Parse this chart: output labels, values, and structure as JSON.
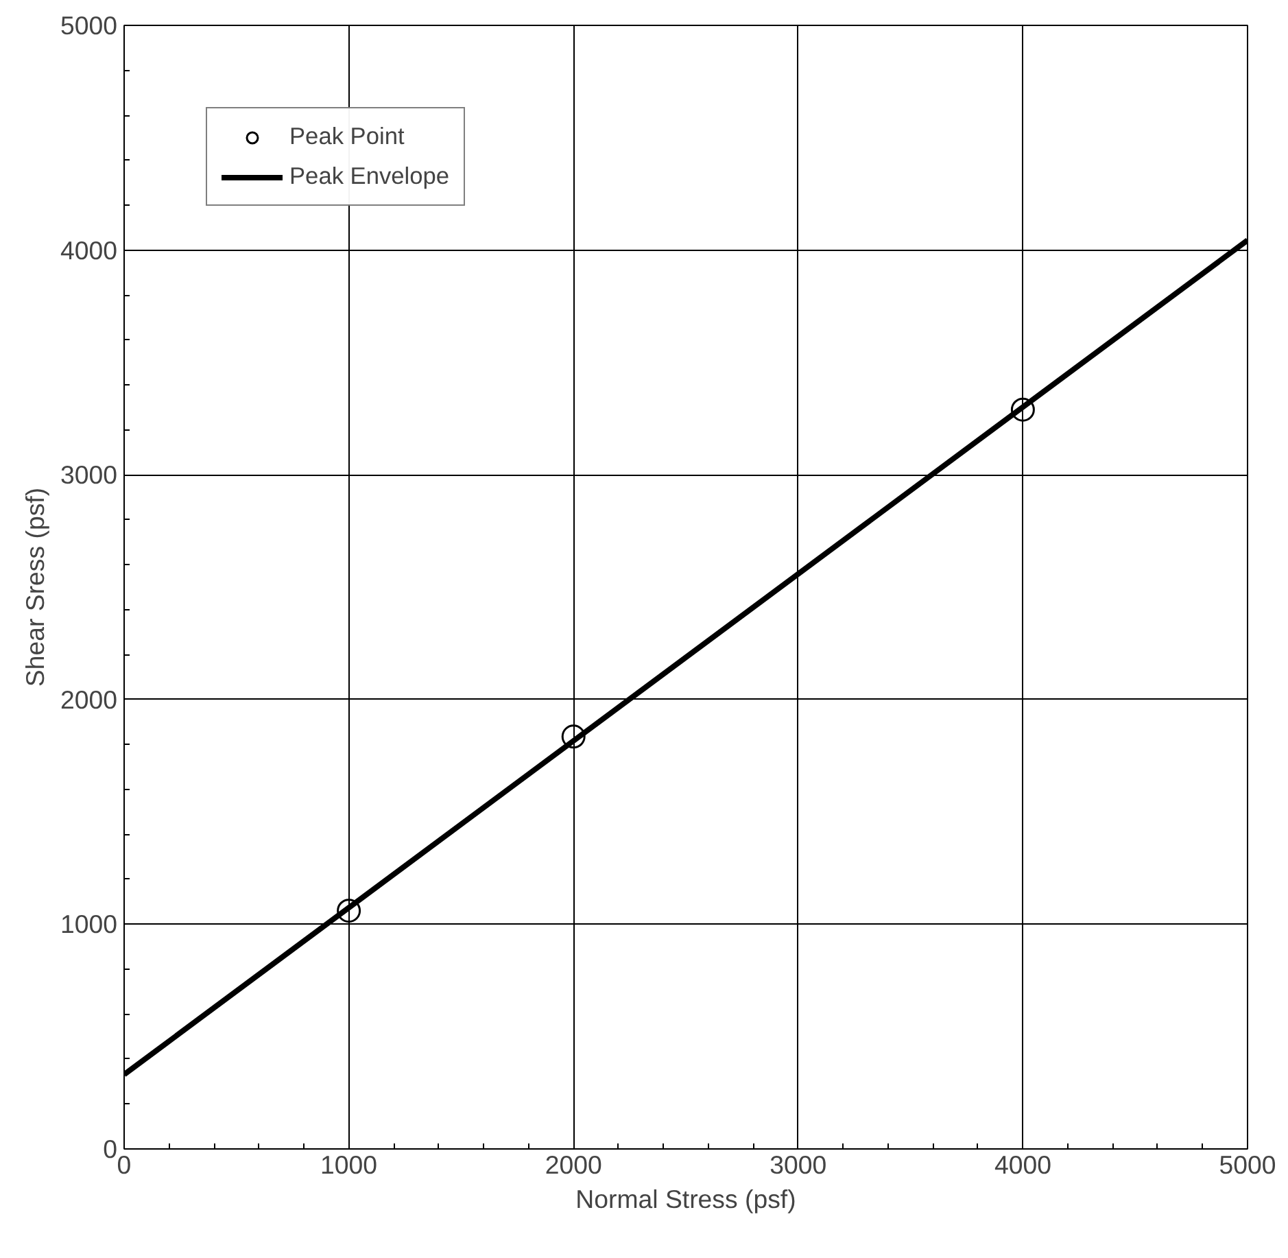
{
  "chart_data": {
    "type": "scatter",
    "xlabel": "Normal Stress (psf)",
    "ylabel": "Shear Sress (psf)",
    "xlim": [
      0,
      5000
    ],
    "ylim": [
      0,
      5000
    ],
    "xticks": [
      0,
      1000,
      2000,
      3000,
      4000,
      5000
    ],
    "yticks": [
      0,
      1000,
      2000,
      3000,
      4000,
      5000
    ],
    "grid": true,
    "legend": "top left",
    "series": [
      {
        "name": "Peak Point",
        "marker": "circle",
        "color": "#000000",
        "x": [
          1000,
          2000,
          4000
        ],
        "values": [
          1060,
          1835,
          3290
        ]
      },
      {
        "name": "Peak Envelope",
        "type": "line",
        "line_style": "solid",
        "marker": "none",
        "color": "#000000",
        "x": [
          0,
          5000
        ],
        "values": [
          331,
          4044
        ]
      }
    ]
  }
}
